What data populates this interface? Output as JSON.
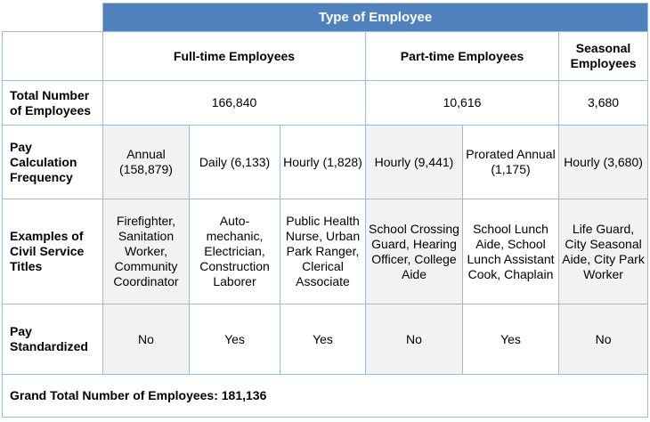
{
  "table": {
    "title": "Type of Employee",
    "column_groups": [
      "Full-time Employees",
      "Part-time Employees",
      "Seasonal Employees"
    ],
    "rows": {
      "total": {
        "label": "Total Number of Employees",
        "full_time": "166,840",
        "part_time": "10,616",
        "seasonal": "3,680"
      },
      "pay_frequency": {
        "label": "Pay Calculation Frequency",
        "cells": [
          "Annual (158,879)",
          "Daily (6,133)",
          "Hourly (1,828)",
          "Hourly (9,441)",
          "Prorated Annual (1,175)",
          "Hourly (3,680)"
        ]
      },
      "examples": {
        "label": "Examples of Civil Service Titles",
        "cells": [
          "Firefighter, Sanitation Worker, Community Coordinator",
          "Auto-mechanic, Electrician, Construction Laborer",
          "Public Health Nurse, Urban Park Ranger, Clerical Associate",
          "School Crossing Guard, Hearing Officer, College Aide",
          "School Lunch Aide, School Lunch Assistant Cook, Chaplain",
          "Life Guard, City Seasonal Aide, City Park Worker"
        ]
      },
      "standardized": {
        "label": "Pay Standardized",
        "cells": [
          "No",
          "Yes",
          "Yes",
          "No",
          "Yes",
          "No"
        ]
      }
    },
    "grand_total": "Grand Total Number of Employees: 181,136",
    "colors": {
      "header_bg": "#4f81bd",
      "header_text": "#ffffff",
      "border": "#9fb9d6",
      "shade": "#f2f2f2"
    }
  }
}
